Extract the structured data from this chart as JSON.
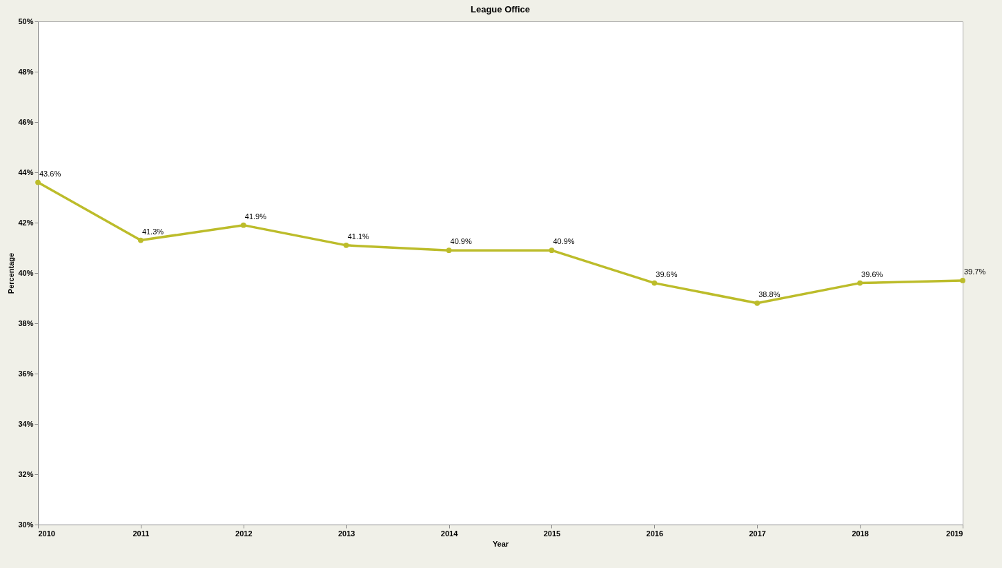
{
  "chart_data": {
    "type": "line",
    "title": "League Office",
    "xlabel": "Year",
    "ylabel": "Percentage",
    "x": [
      2010,
      2011,
      2012,
      2013,
      2014,
      2015,
      2016,
      2017,
      2018,
      2019
    ],
    "series": [
      {
        "color": "#bcbc2a",
        "values": [
          43.6,
          41.3,
          41.9,
          41.1,
          40.9,
          40.9,
          39.6,
          38.8,
          39.6,
          39.7
        ]
      }
    ],
    "xlim": [
      2010,
      2019
    ],
    "xticks": [
      2010,
      2011,
      2012,
      2013,
      2014,
      2015,
      2016,
      2017,
      2018,
      2019
    ],
    "ylim": [
      30,
      50
    ],
    "yticks": [
      {
        "value": 30,
        "label": "30%"
      },
      {
        "value": 32,
        "label": "32%"
      },
      {
        "value": 34,
        "label": "34%"
      },
      {
        "value": 36,
        "label": "36%"
      },
      {
        "value": 38,
        "label": "38%"
      },
      {
        "value": 40,
        "label": "40%"
      },
      {
        "value": 42,
        "label": "42%"
      },
      {
        "value": 44,
        "label": "44%"
      },
      {
        "value": 46,
        "label": "46%"
      },
      {
        "value": 48,
        "label": "48%"
      },
      {
        "value": 50,
        "label": "50%"
      }
    ],
    "value_labels": [
      "43.6%",
      "41.3%",
      "41.9%",
      "41.1%",
      "40.9%",
      "40.9%",
      "39.6%",
      "38.8%",
      "39.6%",
      "39.7%"
    ],
    "marker": "circle",
    "line_style": "solid",
    "grid": false
  }
}
